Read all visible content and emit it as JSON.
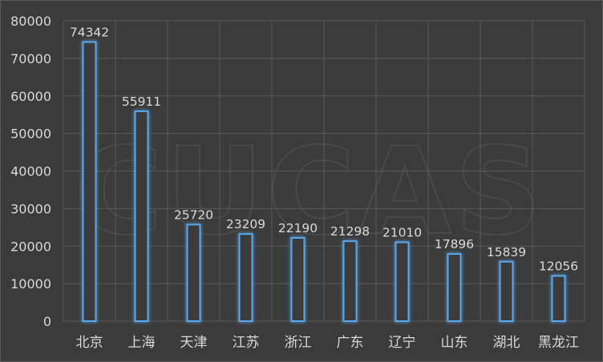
{
  "chart_data": {
    "type": "bar",
    "categories": [
      "北京",
      "上海",
      "天津",
      "江苏",
      "浙江",
      "广东",
      "辽宁",
      "山东",
      "湖北",
      "黑龙江"
    ],
    "values": [
      74342,
      55911,
      25720,
      23209,
      22190,
      21298,
      21010,
      17896,
      15839,
      12056
    ],
    "title": "",
    "xlabel": "",
    "ylabel": "",
    "ylim": [
      0,
      80000
    ],
    "yticks": [
      0,
      10000,
      20000,
      30000,
      40000,
      50000,
      60000,
      70000,
      80000
    ],
    "grid": true,
    "legend": "none",
    "bar_color": "#5aa9ee",
    "background_color": "#3b3b3b",
    "watermark": "CUCAS"
  }
}
